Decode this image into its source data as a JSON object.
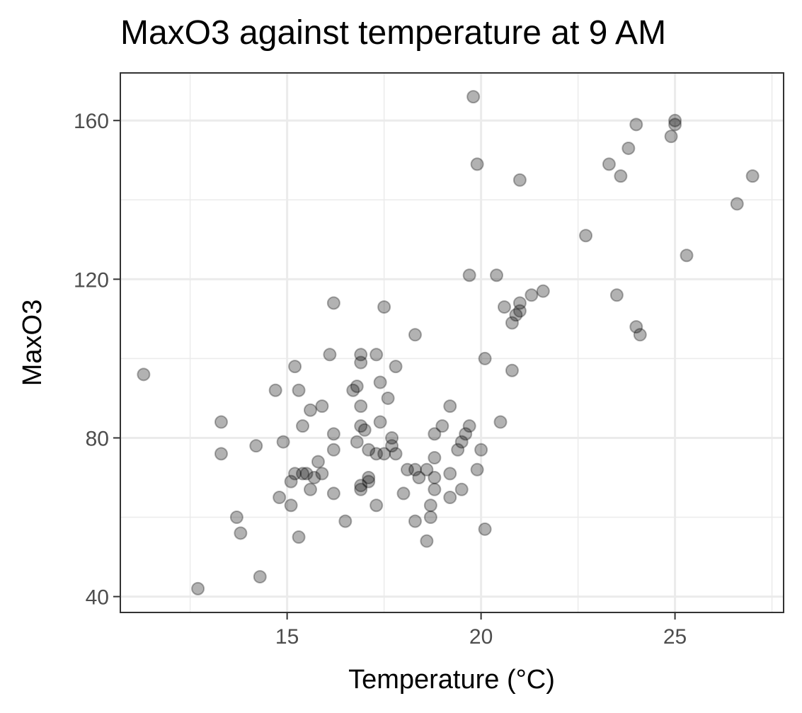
{
  "chart_data": {
    "type": "scatter",
    "title": "MaxO3 against temperature at 9 AM",
    "xlabel": "Temperature (°C)",
    "ylabel": "MaxO3",
    "xlim": [
      10.7,
      27.8
    ],
    "ylim": [
      36,
      172
    ],
    "x_ticks": [
      15,
      20,
      25
    ],
    "x_tick_labels": [
      "15",
      "20",
      "25"
    ],
    "y_ticks": [
      40,
      80,
      120,
      160
    ],
    "y_tick_labels": [
      "40",
      "80",
      "120",
      "160"
    ],
    "x_minor_ticks": [
      12.5,
      17.5,
      22.5,
      27.5
    ],
    "y_minor_ticks": [
      60,
      100,
      140
    ],
    "grid": true,
    "legend": "none",
    "point_color": "#000000",
    "point_alpha": 0.3,
    "points": [
      [
        11.3,
        96
      ],
      [
        12.7,
        42
      ],
      [
        13.3,
        84
      ],
      [
        13.3,
        76
      ],
      [
        13.7,
        60
      ],
      [
        13.8,
        56
      ],
      [
        14.2,
        78
      ],
      [
        14.3,
        45
      ],
      [
        14.7,
        92
      ],
      [
        14.8,
        65
      ],
      [
        14.9,
        79
      ],
      [
        15.1,
        69
      ],
      [
        15.1,
        63
      ],
      [
        15.2,
        98
      ],
      [
        15.2,
        71
      ],
      [
        15.3,
        92
      ],
      [
        15.3,
        55
      ],
      [
        15.4,
        83
      ],
      [
        15.4,
        71
      ],
      [
        15.5,
        71
      ],
      [
        15.6,
        87
      ],
      [
        15.6,
        67
      ],
      [
        15.7,
        70
      ],
      [
        15.8,
        74
      ],
      [
        15.9,
        88
      ],
      [
        15.9,
        71
      ],
      [
        16.1,
        101
      ],
      [
        16.2,
        114
      ],
      [
        16.2,
        81
      ],
      [
        16.2,
        77
      ],
      [
        16.2,
        66
      ],
      [
        16.5,
        59
      ],
      [
        16.7,
        92
      ],
      [
        16.8,
        93
      ],
      [
        16.8,
        79
      ],
      [
        16.9,
        101
      ],
      [
        16.9,
        99
      ],
      [
        16.9,
        88
      ],
      [
        16.9,
        83
      ],
      [
        16.9,
        68
      ],
      [
        16.9,
        67
      ],
      [
        17.0,
        82
      ],
      [
        17.1,
        77
      ],
      [
        17.1,
        70
      ],
      [
        17.1,
        69
      ],
      [
        17.3,
        101
      ],
      [
        17.3,
        76
      ],
      [
        17.3,
        63
      ],
      [
        17.4,
        94
      ],
      [
        17.4,
        84
      ],
      [
        17.5,
        113
      ],
      [
        17.5,
        76
      ],
      [
        17.6,
        90
      ],
      [
        17.7,
        80
      ],
      [
        17.7,
        78
      ],
      [
        17.8,
        98
      ],
      [
        17.8,
        76
      ],
      [
        18.0,
        66
      ],
      [
        18.1,
        72
      ],
      [
        18.3,
        106
      ],
      [
        18.3,
        72
      ],
      [
        18.3,
        59
      ],
      [
        18.4,
        70
      ],
      [
        18.6,
        72
      ],
      [
        18.6,
        54
      ],
      [
        18.7,
        63
      ],
      [
        18.7,
        60
      ],
      [
        18.8,
        81
      ],
      [
        18.8,
        75
      ],
      [
        18.8,
        70
      ],
      [
        18.8,
        67
      ],
      [
        19.0,
        83
      ],
      [
        19.2,
        88
      ],
      [
        19.2,
        71
      ],
      [
        19.2,
        65
      ],
      [
        19.4,
        77
      ],
      [
        19.5,
        79
      ],
      [
        19.5,
        67
      ],
      [
        19.6,
        81
      ],
      [
        19.7,
        121
      ],
      [
        19.7,
        83
      ],
      [
        19.8,
        166
      ],
      [
        19.9,
        149
      ],
      [
        19.9,
        72
      ],
      [
        20.0,
        77
      ],
      [
        20.1,
        100
      ],
      [
        20.1,
        57
      ],
      [
        20.4,
        121
      ],
      [
        20.5,
        84
      ],
      [
        20.6,
        113
      ],
      [
        20.8,
        109
      ],
      [
        20.8,
        97
      ],
      [
        20.9,
        111
      ],
      [
        21.0,
        145
      ],
      [
        21.0,
        114
      ],
      [
        21.0,
        112
      ],
      [
        21.3,
        116
      ],
      [
        21.6,
        117
      ],
      [
        22.7,
        131
      ],
      [
        23.3,
        149
      ],
      [
        23.5,
        116
      ],
      [
        23.6,
        146
      ],
      [
        23.8,
        153
      ],
      [
        24.0,
        159
      ],
      [
        24.0,
        108
      ],
      [
        24.1,
        106
      ],
      [
        24.9,
        156
      ],
      [
        25.0,
        160
      ],
      [
        25.0,
        159
      ],
      [
        25.3,
        126
      ],
      [
        26.6,
        139
      ],
      [
        27.0,
        146
      ]
    ]
  }
}
